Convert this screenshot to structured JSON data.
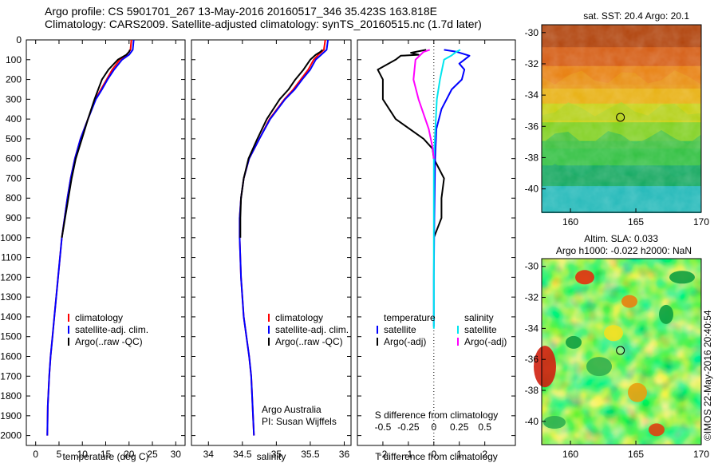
{
  "header": {
    "line1": "Argo profile: CS 5901701_267 13-May-2016 20160517_346 35.423S 163.818E",
    "line2": "Climatology: CARS2009. Satellite-adjusted climatology: synTS_20160515.nc (1.7d later)"
  },
  "colors": {
    "climatology": "#ff0000",
    "satellite": "#0000ff",
    "argo": "#000000",
    "sal_satellite": "#00e5ee",
    "sal_argo": "#ff00ff"
  },
  "chart_data": [
    {
      "type": "line",
      "name": "temperature",
      "xlabel": "temperature (deg C)",
      "xlim": [
        -2,
        32
      ],
      "ylim": [
        0,
        2050
      ],
      "xticks": [
        "0",
        "5",
        "10",
        "15",
        "20",
        "25",
        "30"
      ],
      "yticks": [
        "0",
        "100",
        "200",
        "300",
        "400",
        "500",
        "600",
        "700",
        "800",
        "900",
        "1000",
        "1100",
        "1200",
        "1300",
        "1400",
        "1500",
        "1600",
        "1700",
        "1800",
        "1900",
        "2000"
      ],
      "legend": [
        "climatology",
        "satellite-adj. clim.",
        "Argo(..raw -QC)"
      ],
      "series": [
        {
          "name": "climatology",
          "color": "#ff0000",
          "x": [
            20.5,
            20.3,
            19.5,
            18.0,
            16.4,
            15.2,
            14.0,
            12.8,
            11.2,
            9.6,
            8.4,
            7.5,
            6.8,
            6.2,
            5.6,
            4.8,
            4.0,
            3.6,
            3.2,
            2.9,
            2.6,
            2.5
          ],
          "y": [
            0,
            50,
            75,
            100,
            150,
            200,
            250,
            300,
            400,
            500,
            600,
            700,
            800,
            900,
            1000,
            1200,
            1400,
            1500,
            1600,
            1700,
            1850,
            2000
          ]
        },
        {
          "name": "satellite-adj. clim.",
          "color": "#0000ff",
          "x": [
            21.0,
            20.8,
            20.0,
            18.5,
            16.8,
            15.4,
            14.2,
            12.9,
            11.2,
            9.6,
            8.4,
            7.5,
            6.8,
            6.2,
            5.6,
            4.8,
            4.0,
            3.6,
            3.2,
            2.9,
            2.6,
            2.5
          ],
          "y": [
            0,
            50,
            75,
            100,
            150,
            200,
            250,
            300,
            400,
            500,
            600,
            700,
            800,
            900,
            1000,
            1200,
            1400,
            1500,
            1600,
            1700,
            1850,
            2000
          ]
        },
        {
          "name": "Argo",
          "color": "#000000",
          "x": [
            20.2,
            20.0,
            19.4,
            17.6,
            15.6,
            14.2,
            13.4,
            12.6,
            11.2,
            9.9,
            8.6,
            7.7,
            7.0,
            6.3,
            5.6
          ],
          "y": [
            50,
            60,
            75,
            100,
            150,
            200,
            250,
            300,
            400,
            500,
            600,
            700,
            800,
            900,
            1000
          ]
        }
      ]
    },
    {
      "type": "line",
      "name": "salinity",
      "xlabel": "salinity",
      "xlim": [
        33.75,
        36.1
      ],
      "ylim": [
        0,
        2050
      ],
      "xticks": [
        "34",
        "34.5",
        "35",
        "35.5",
        "36"
      ],
      "legend": [
        "climatology",
        "satellite-adj. clim.",
        "Argo(..raw -QC)"
      ],
      "annotation": [
        "Argo Australia",
        "PI: Susan Wijffels"
      ],
      "series": [
        {
          "name": "climatology",
          "color": "#ff0000",
          "x": [
            35.72,
            35.7,
            35.62,
            35.55,
            35.47,
            35.36,
            35.25,
            35.12,
            34.9,
            34.75,
            34.6,
            34.52,
            34.48,
            34.46,
            34.46,
            34.48,
            34.52,
            34.56,
            34.6,
            34.63,
            34.65,
            34.67
          ],
          "y": [
            0,
            50,
            75,
            100,
            150,
            200,
            250,
            300,
            400,
            500,
            600,
            700,
            800,
            900,
            1000,
            1200,
            1400,
            1500,
            1600,
            1700,
            1850,
            2000
          ]
        },
        {
          "name": "satellite-adj. clim.",
          "color": "#0000ff",
          "x": [
            35.76,
            35.74,
            35.66,
            35.58,
            35.5,
            35.38,
            35.27,
            35.13,
            34.91,
            34.75,
            34.6,
            34.52,
            34.48,
            34.46,
            34.46,
            34.48,
            34.52,
            34.56,
            34.6,
            34.63,
            34.65,
            34.67
          ],
          "y": [
            0,
            50,
            75,
            100,
            150,
            200,
            250,
            300,
            400,
            500,
            600,
            700,
            800,
            900,
            1000,
            1200,
            1400,
            1500,
            1600,
            1700,
            1850,
            2000
          ]
        },
        {
          "name": "Argo",
          "color": "#000000",
          "x": [
            35.68,
            35.65,
            35.58,
            35.5,
            35.4,
            35.28,
            35.18,
            35.05,
            34.86,
            34.72,
            34.59,
            34.52,
            34.48,
            34.47,
            34.47
          ],
          "y": [
            50,
            60,
            75,
            100,
            150,
            200,
            250,
            300,
            400,
            500,
            600,
            700,
            800,
            900,
            1000
          ]
        }
      ]
    },
    {
      "type": "line",
      "name": "difference from climatology",
      "xlabel": "T difference from climatology",
      "xlabel_top": "S difference from climatology",
      "xlim": [
        -3,
        3.2
      ],
      "ylim": [
        0,
        2050
      ],
      "xticks": [
        "-2",
        "-1",
        "0",
        "1",
        "2"
      ],
      "xticks_top": [
        "-0.5",
        "-0.25",
        "0",
        "0.25",
        "0.5"
      ],
      "legend_temperature": {
        "title": "temperature",
        "items": [
          "satellite",
          "Argo(-adj)"
        ]
      },
      "legend_salinity": {
        "title": "salinity",
        "items": [
          "satellite",
          "Argo(-adj)"
        ]
      },
      "series": [
        {
          "name": "T satellite",
          "color": "#0000ff",
          "x": [
            0.4,
            0.9,
            1.4,
            1.2,
            1.0,
            1.2,
            1.1,
            0.7,
            0.3,
            0.1,
            0.05,
            0.02,
            0.0,
            0.0
          ],
          "y": [
            50,
            60,
            80,
            100,
            120,
            150,
            200,
            250,
            350,
            450,
            600,
            900,
            1200,
            1450
          ]
        },
        {
          "name": "T Argo(-adj)",
          "color": "#000000",
          "x": [
            -0.3,
            -0.9,
            -0.6,
            -1.3,
            -1.5,
            -2.2,
            -2.0,
            -2.0,
            -1.5,
            -0.4,
            -0.05,
            0.0,
            0.4,
            0.3,
            0.3,
            0.0
          ],
          "y": [
            50,
            65,
            75,
            80,
            100,
            150,
            200,
            300,
            400,
            500,
            550,
            600,
            700,
            800,
            900,
            1000
          ]
        },
        {
          "name": "S satellite",
          "color": "#00e5ee",
          "x": [
            0.26,
            0.22,
            0.17,
            0.1,
            0.06,
            0.03,
            0.0,
            0.0,
            0.0
          ],
          "y": [
            50,
            60,
            80,
            100,
            200,
            300,
            600,
            900,
            1460
          ]
        },
        {
          "name": "S Argo(-adj)",
          "color": "#ff00ff",
          "x": [
            -0.04,
            -0.1,
            -0.14,
            -0.18,
            -0.2,
            -0.15,
            -0.05,
            -0.01,
            0.0
          ],
          "y": [
            50,
            60,
            80,
            100,
            200,
            300,
            450,
            550,
            600
          ]
        }
      ]
    },
    {
      "type": "heatmap",
      "name": "sst_map",
      "title": "sat. SST: 20.4 Argo: 20.1",
      "xlim": [
        157.8,
        170
      ],
      "ylim": [
        -41.5,
        -29.5
      ],
      "xticks": [
        "160",
        "165",
        "170"
      ],
      "yticks": [
        "-30",
        "-32",
        "-34",
        "-36",
        "-38",
        "-40"
      ],
      "marker": {
        "lon": 163.818,
        "lat": -35.423
      }
    },
    {
      "type": "heatmap",
      "name": "sla_map",
      "title_line1": "Altim. SLA: 0.033",
      "title_line2": "Argo h1000: -0.022 h2000: NaN",
      "xlim": [
        157.8,
        170
      ],
      "ylim": [
        -41.5,
        -29.5
      ],
      "xticks": [
        "160",
        "165",
        "170"
      ],
      "yticks": [
        "-30",
        "-32",
        "-34",
        "-36",
        "-38",
        "-40"
      ],
      "marker": {
        "lon": 163.818,
        "lat": -35.423
      },
      "side_label": "©IMOS 22-May-2016 20:40:54"
    }
  ]
}
